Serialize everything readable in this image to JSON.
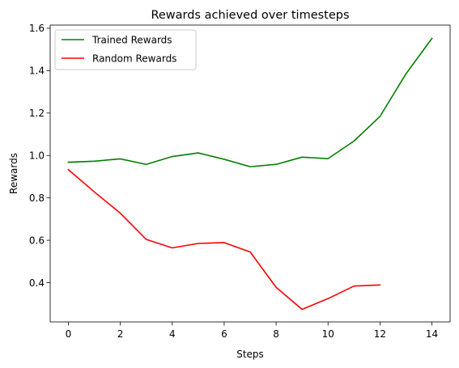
{
  "chart_data": {
    "type": "line",
    "title": "Rewards achieved over timesteps",
    "xlabel": "Steps",
    "ylabel": "Rewards",
    "xlim": [
      -0.7,
      14.7
    ],
    "ylim": [
      0.215,
      1.615
    ],
    "xticks": [
      0,
      2,
      4,
      6,
      8,
      10,
      12,
      14
    ],
    "yticks": [
      0.4,
      0.6,
      0.8,
      1.0,
      1.2,
      1.4,
      1.6
    ],
    "ytick_labels": [
      "0.4",
      "0.6",
      "0.8",
      "1.0",
      "1.2",
      "1.4",
      "1.6"
    ],
    "grid": false,
    "legend_position": "top-left",
    "series": [
      {
        "name": "Trained Rewards",
        "color": "#008000",
        "x": [
          0,
          1,
          2,
          3,
          4,
          5,
          6,
          7,
          8,
          9,
          10,
          11,
          12,
          13,
          14
        ],
        "y": [
          0.968,
          0.973,
          0.984,
          0.958,
          0.995,
          1.012,
          0.982,
          0.947,
          0.958,
          0.992,
          0.985,
          1.068,
          1.184,
          1.385,
          1.552
        ]
      },
      {
        "name": "Random Rewards",
        "color": "#ff0000",
        "x": [
          0,
          1,
          2,
          3,
          4,
          5,
          6,
          7,
          8,
          9,
          10,
          11,
          12
        ],
        "y": [
          0.933,
          0.828,
          0.728,
          0.604,
          0.564,
          0.585,
          0.589,
          0.545,
          0.378,
          0.274,
          0.325,
          0.384,
          0.389
        ]
      }
    ]
  }
}
